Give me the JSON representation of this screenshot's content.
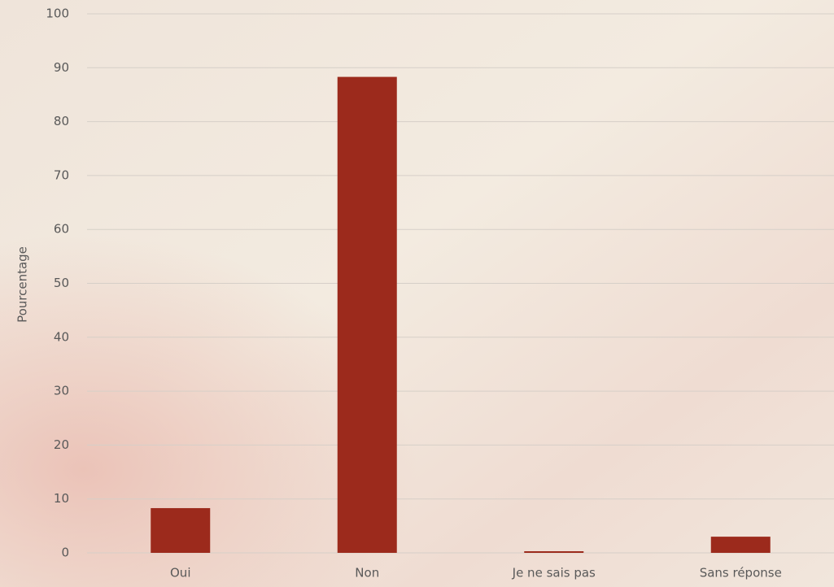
{
  "chart_data": {
    "type": "bar",
    "y_label": "Pourcentage",
    "categories": [
      "Oui",
      "Non",
      "Je ne sais pas",
      "Sans réponse"
    ],
    "values": [
      8.3,
      88.3,
      0.3,
      3.0
    ],
    "color": "#9c2a1c",
    "ylim": [
      0,
      100
    ],
    "yticks": [
      0,
      10,
      20,
      30,
      40,
      50,
      60,
      70,
      80,
      90,
      100
    ],
    "grid": true
  }
}
